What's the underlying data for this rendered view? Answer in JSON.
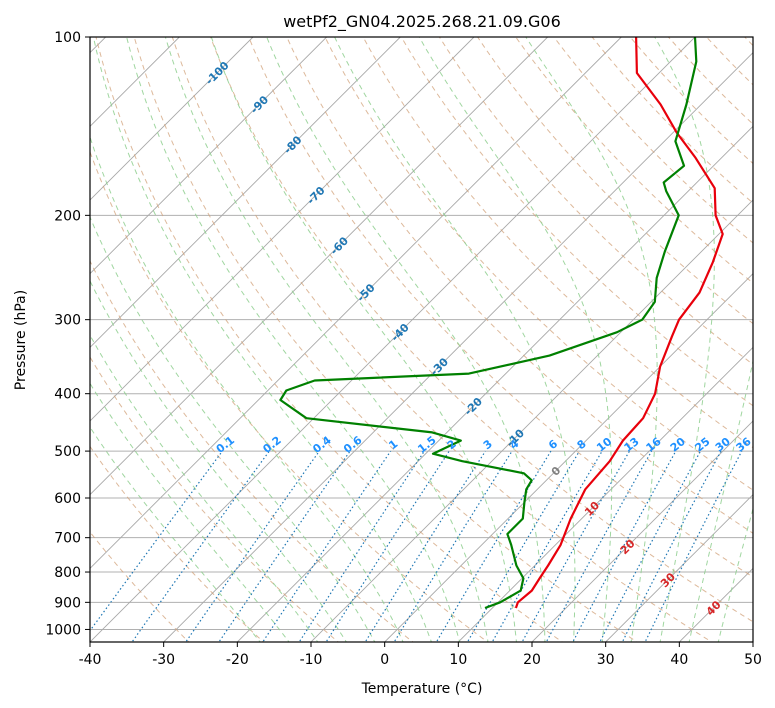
{
  "chart_data": {
    "type": "skew-t",
    "title": "wetPf2_GN04.2025.268.21.09.G06",
    "xlabel": "Temperature (°C)",
    "ylabel": "Pressure (hPa)",
    "xlim": [
      -40,
      50
    ],
    "ylim": [
      1050,
      100
    ],
    "x_ticks": [
      "-40",
      "-30",
      "-20",
      "-10",
      "0",
      "10",
      "20",
      "30",
      "40",
      "50"
    ],
    "y_ticks": [
      "100",
      "200",
      "300",
      "400",
      "500",
      "600",
      "700",
      "800",
      "900",
      "1000"
    ],
    "colors": {
      "temperature": "#e8000b",
      "dewpoint": "#008000",
      "dry_adiabat": "#d2a27a",
      "moist_adiabat": "#8fcf8f",
      "mixing_ratio": "#1f77b4",
      "isotherm_label": "#d62728"
    },
    "series": [
      {
        "name": "Temperature",
        "points": [
          [
            13.2,
            920
          ],
          [
            12.7,
            900
          ],
          [
            13.0,
            860
          ],
          [
            12.4,
            820
          ],
          [
            11.8,
            780
          ],
          [
            10.7,
            720
          ],
          [
            8.5,
            650
          ],
          [
            6.5,
            580
          ],
          [
            6.0,
            520
          ],
          [
            5.0,
            480
          ],
          [
            4.7,
            440
          ],
          [
            3.0,
            400
          ],
          [
            0.0,
            360
          ],
          [
            -2.5,
            320
          ],
          [
            -3.8,
            300
          ],
          [
            -4.7,
            270
          ],
          [
            -7.0,
            240
          ],
          [
            -9.5,
            215
          ],
          [
            -13.0,
            200
          ],
          [
            -16.8,
            180
          ],
          [
            -23.5,
            160
          ],
          [
            -29.5,
            145
          ],
          [
            -35.5,
            130
          ],
          [
            -43.0,
            115
          ],
          [
            -48.0,
            100
          ]
        ]
      },
      {
        "name": "Dewpoint",
        "points": [
          [
            9.0,
            920
          ],
          [
            10.3,
            900
          ],
          [
            11.5,
            860
          ],
          [
            10.2,
            820
          ],
          [
            7.5,
            780
          ],
          [
            4.0,
            720
          ],
          [
            2.0,
            690
          ],
          [
            2.0,
            650
          ],
          [
            0.0,
            610
          ],
          [
            -1.5,
            580
          ],
          [
            -2.0,
            560
          ],
          [
            -4.0,
            545
          ],
          [
            -14.0,
            520
          ],
          [
            -19.0,
            505
          ],
          [
            -17.0,
            480
          ],
          [
            -22.0,
            465
          ],
          [
            -41.0,
            440
          ],
          [
            -47.0,
            410
          ],
          [
            -47.5,
            395
          ],
          [
            -45.0,
            380
          ],
          [
            -25.0,
            370
          ],
          [
            -16.5,
            345
          ],
          [
            -10.5,
            315
          ],
          [
            -8.8,
            300
          ],
          [
            -9.5,
            280
          ],
          [
            -12.5,
            255
          ],
          [
            -15.0,
            230
          ],
          [
            -18.0,
            200
          ],
          [
            -23.0,
            182
          ],
          [
            -24.5,
            176
          ],
          [
            -24.0,
            165
          ],
          [
            -28.5,
            150
          ],
          [
            -32.0,
            130
          ],
          [
            -36.5,
            110
          ],
          [
            -40.0,
            100
          ]
        ]
      }
    ],
    "mixing_ratio_labels": [
      "0.1",
      "0.2",
      "0.4",
      "0.6",
      "1",
      "1.5",
      "2",
      "3",
      "4",
      "6",
      "8",
      "10",
      "13",
      "16",
      "20",
      "25",
      "30",
      "36"
    ],
    "mixing_ratio_values": [
      0.1,
      0.2,
      0.4,
      0.6,
      1,
      1.5,
      2,
      3,
      4,
      6,
      8,
      10,
      13,
      16,
      20,
      25,
      30,
      36
    ],
    "isotherm_labels": [
      {
        "text": "-100",
        "t": -100,
        "p": 115
      },
      {
        "text": "-90",
        "t": -90,
        "p": 130
      },
      {
        "text": "-80",
        "t": -80,
        "p": 152
      },
      {
        "text": "-70",
        "t": -70,
        "p": 185
      },
      {
        "text": "-60",
        "t": -60,
        "p": 225
      },
      {
        "text": "-50",
        "t": -50,
        "p": 270
      },
      {
        "text": "-40",
        "t": -40,
        "p": 315
      },
      {
        "text": "-30",
        "t": -30,
        "p": 360
      },
      {
        "text": "-20",
        "t": -20,
        "p": 420
      },
      {
        "text": "-10",
        "t": -10,
        "p": 475
      },
      {
        "text": "0",
        "t": 0,
        "p": 540
      },
      {
        "text": "10",
        "t": 10,
        "p": 625
      },
      {
        "text": "20",
        "t": 20,
        "p": 725
      },
      {
        "text": "30",
        "t": 30,
        "p": 825
      },
      {
        "text": "40",
        "t": 40,
        "p": 920
      }
    ]
  }
}
